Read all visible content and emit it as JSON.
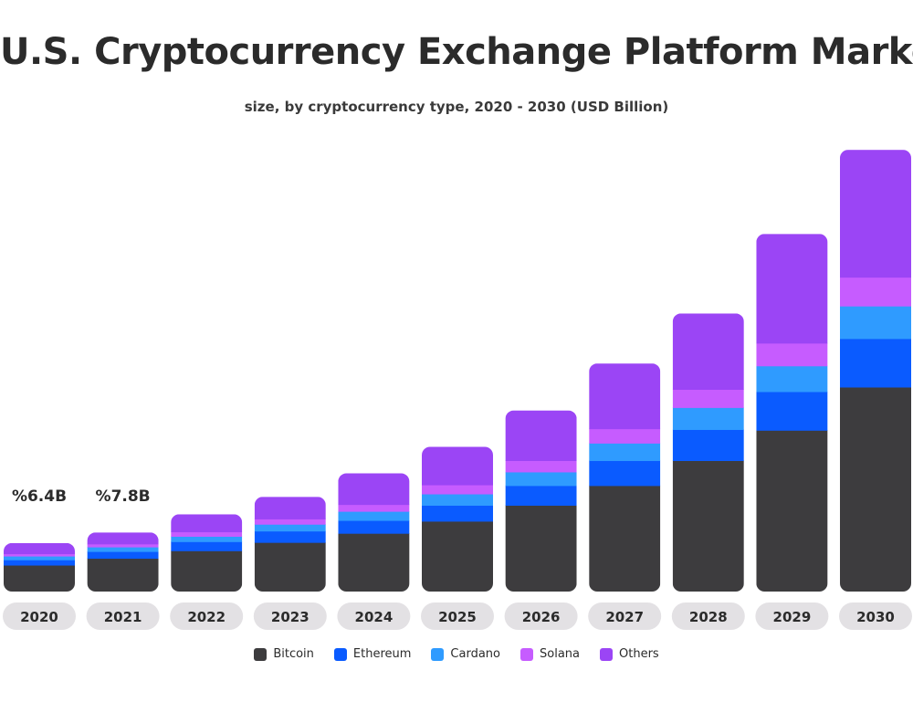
{
  "chart_data": {
    "type": "bar",
    "stacked": true,
    "title": "U.S. Cryptocurrency Exchange Platform Market",
    "subtitle": "size, by cryptocurrency type, 2020 - 2030 (USD Billion)",
    "categories": [
      "2020",
      "2021",
      "2022",
      "2023",
      "2024",
      "2025",
      "2026",
      "2027",
      "2028",
      "2029",
      "2030"
    ],
    "series": [
      {
        "name": "Bitcoin",
        "color": "#3d3c3e",
        "values": [
          3.5,
          4.4,
          5.4,
          6.5,
          7.7,
          9.3,
          11.4,
          14.0,
          17.3,
          21.3,
          27.0
        ]
      },
      {
        "name": "Ethereum",
        "color": "#0a5bff",
        "values": [
          0.7,
          0.9,
          1.2,
          1.5,
          1.7,
          2.1,
          2.6,
          3.3,
          4.1,
          5.1,
          6.4
        ]
      },
      {
        "name": "Cardano",
        "color": "#2f9bff",
        "values": [
          0.5,
          0.6,
          0.7,
          0.9,
          1.2,
          1.5,
          1.8,
          2.3,
          2.9,
          3.4,
          4.3
        ]
      },
      {
        "name": "Solana",
        "color": "#c65cff",
        "values": [
          0.3,
          0.4,
          0.6,
          0.7,
          0.9,
          1.2,
          1.5,
          1.9,
          2.4,
          3.0,
          3.8
        ]
      },
      {
        "name": "Others",
        "color": "#9b45f5",
        "values": [
          1.4,
          1.5,
          2.3,
          2.9,
          4.1,
          5.0,
          6.6,
          8.6,
          10.0,
          14.4,
          16.8
        ]
      }
    ],
    "annotations": [
      {
        "category": "2020",
        "text": "%6.4B"
      },
      {
        "category": "2021",
        "text": "%7.8B"
      }
    ],
    "ylim": [
      0,
      60
    ],
    "grid": false,
    "legend": "bottom-center",
    "xlabel": "",
    "ylabel": ""
  }
}
